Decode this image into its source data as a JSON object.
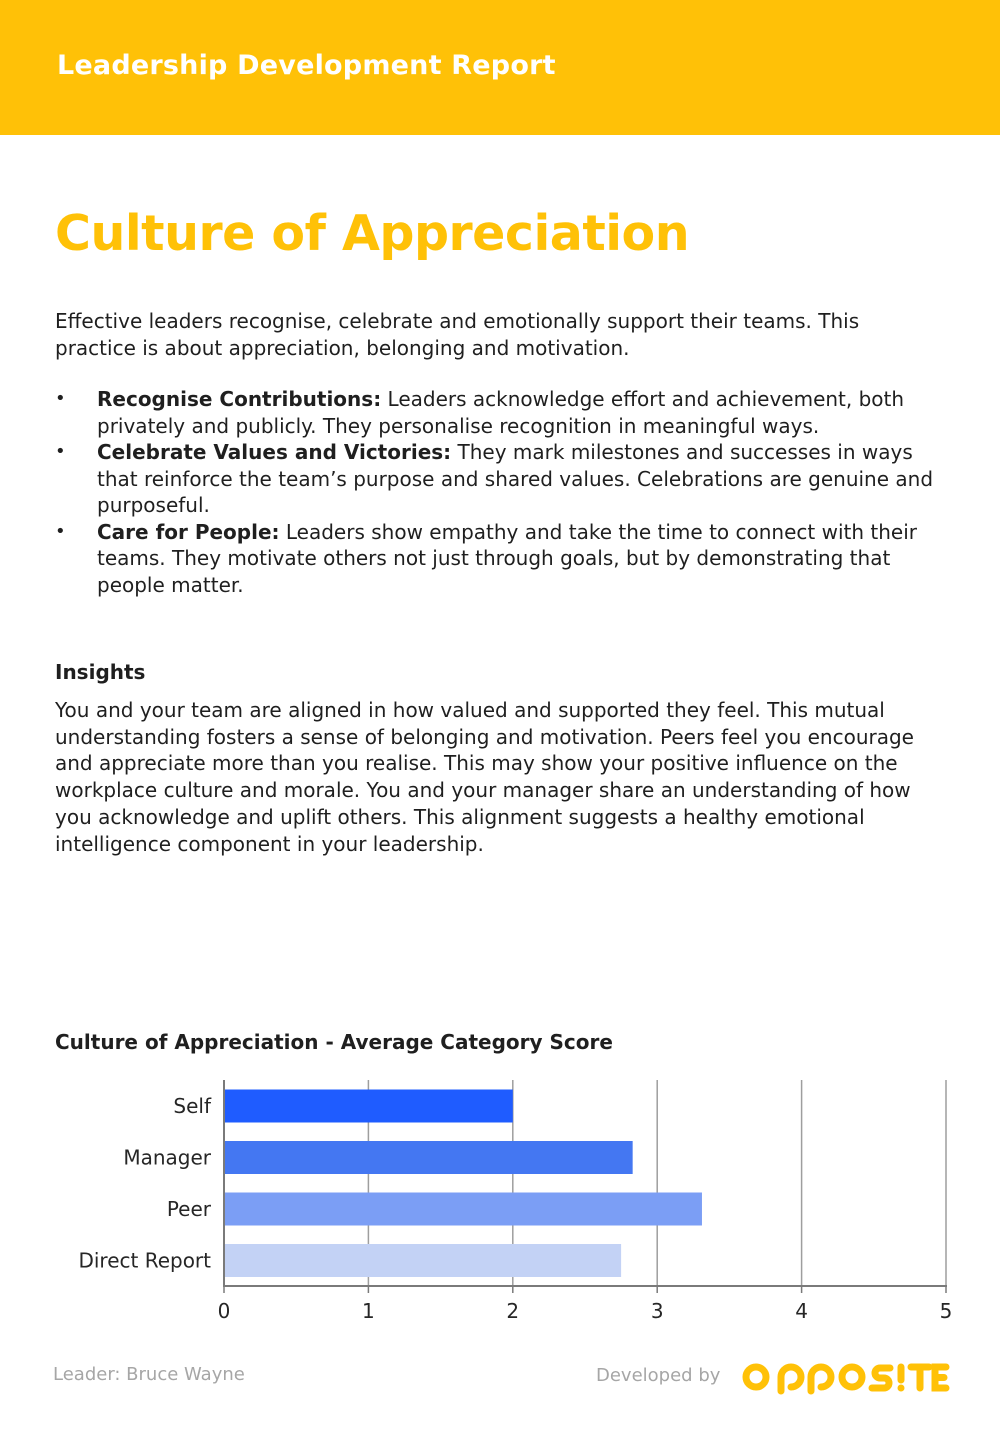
{
  "header": {
    "title": "Leadership Development Report"
  },
  "page": {
    "title": "Culture of Appreciation",
    "intro": "Effective leaders recognise, celebrate and emotionally support their teams. This practice is about appreciation, belonging and motivation.",
    "bullets": [
      {
        "marker": "•",
        "term": "Recognise Contributions:",
        "text": " Leaders acknowledge effort and achievement, both privately and publicly. They personalise recognition in meaningful ways."
      },
      {
        "marker": "•",
        "term": "Celebrate Values and Victories:",
        "text": " They mark milestones and successes in ways that reinforce the team’s purpose and shared values. Celebrations are genuine and purposeful."
      },
      {
        "marker": "•",
        "term": "Care for People:",
        "text": " Leaders show empathy and take the time to connect with their teams. They motivate others not just through goals, but by demonstrating that people matter."
      }
    ],
    "insights_heading": "Insights",
    "insights_text": "You and your team are aligned in how valued and supported they feel. This mutual understanding fosters a sense of belonging and motivation. Peers feel you encourage and appreciate more than you realise. This may show your positive influence on the workplace culture and morale. You and your manager share an understanding of how you acknowledge and uplift others. This alignment suggests a healthy emotional intelligence component in your leadership."
  },
  "chart_data": {
    "type": "bar",
    "orientation": "horizontal",
    "title": "Culture of Appreciation - Average Category Score",
    "categories": [
      "Self",
      "Manager",
      "Peer",
      "Direct Report"
    ],
    "values": [
      2.0,
      2.83,
      3.31,
      2.75
    ],
    "colors": [
      "#1f5cff",
      "#4477f2",
      "#7b9ef5",
      "#c3d2f5"
    ],
    "xlim": [
      0,
      5
    ],
    "xticks": [
      "0",
      "1",
      "2",
      "3",
      "4",
      "5"
    ],
    "xlabel": "",
    "ylabel": "",
    "grid": true,
    "legend": false
  },
  "footer": {
    "leader": "Leader: Bruce Wayne",
    "developed_by": "Developed by",
    "logo_text": "OPPOSITE",
    "logo_color": "#ffc107"
  }
}
